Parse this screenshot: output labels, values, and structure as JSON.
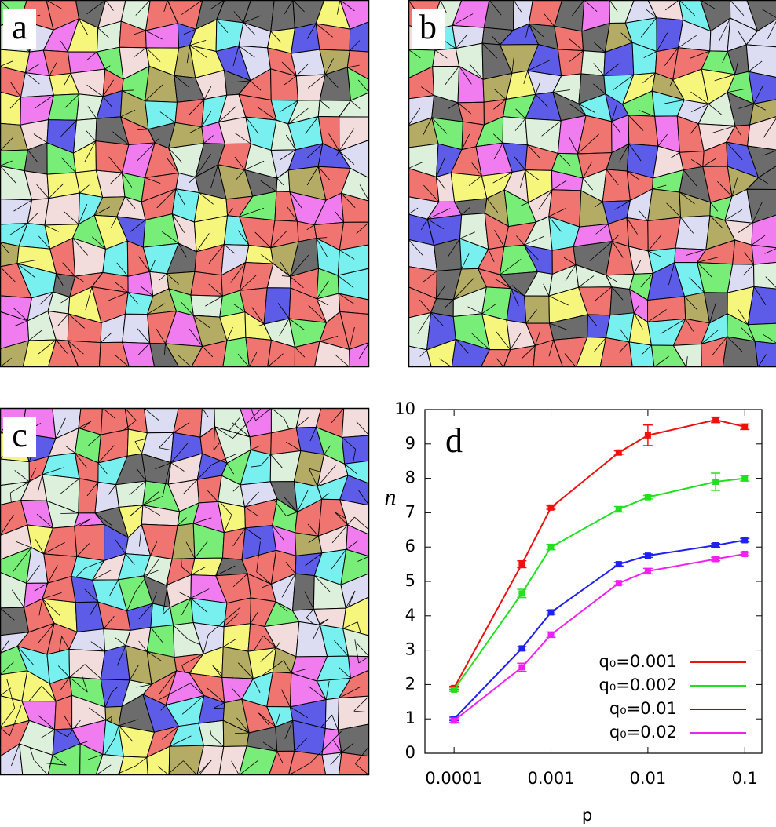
{
  "panels": [
    {
      "label": "a"
    },
    {
      "label": "b"
    },
    {
      "label": "c"
    }
  ],
  "chart_data": {
    "type": "line",
    "panel_label": "d",
    "x_label": "p",
    "y_label": "n",
    "x": [
      0.0001,
      0.0005,
      0.001,
      0.005,
      0.01,
      0.05,
      0.1
    ],
    "xlog": true,
    "xlim": [
      5e-05,
      0.15
    ],
    "xticks": [
      0.0001,
      0.001,
      0.01,
      0.1
    ],
    "ylim": [
      0,
      10
    ],
    "yticks": [
      0,
      1,
      2,
      3,
      4,
      5,
      6,
      7,
      8,
      9,
      10
    ],
    "legend": "lower right",
    "series": [
      {
        "name": "q₀=0.001",
        "color": "#f01010",
        "values": [
          1.9,
          5.5,
          7.15,
          8.75,
          9.25,
          9.7,
          9.5
        ],
        "errors": [
          0.05,
          0.1,
          0.05,
          0.05,
          0.3,
          0.08,
          0.08
        ]
      },
      {
        "name": "q₀=0.002",
        "color": "#20e020",
        "values": [
          1.85,
          4.65,
          6.0,
          7.1,
          7.45,
          7.9,
          8.0
        ],
        "errors": [
          0.05,
          0.12,
          0.08,
          0.08,
          0.05,
          0.25,
          0.08
        ]
      },
      {
        "name": "q₀=0.01",
        "color": "#2020f0",
        "values": [
          1.0,
          3.05,
          4.1,
          5.5,
          5.75,
          6.05,
          6.2
        ],
        "errors": [
          0.05,
          0.05,
          0.05,
          0.05,
          0.05,
          0.05,
          0.05
        ]
      },
      {
        "name": "q₀=0.02",
        "color": "#f020f0",
        "values": [
          0.95,
          2.5,
          3.45,
          4.95,
          5.3,
          5.65,
          5.8
        ],
        "errors": [
          0.05,
          0.12,
          0.08,
          0.05,
          0.08,
          0.05,
          0.05
        ]
      }
    ]
  }
}
